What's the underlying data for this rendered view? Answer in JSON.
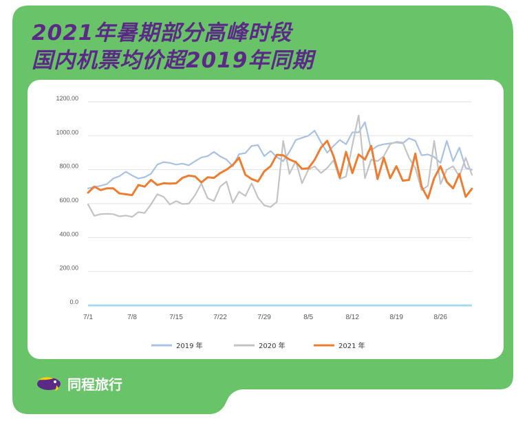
{
  "header": {
    "title_line1": "2021年暑期部分高峰时段",
    "title_line2": "国内机票均价超2019年同期"
  },
  "brand": {
    "name": "同程旅行",
    "logo_icon": "fish-logo-icon"
  },
  "colors": {
    "background_green": "#69c469",
    "title_purple": "#5a2a86",
    "series_2019": "#a9c1e2",
    "series_2020": "#c3c3c3",
    "series_2021": "#ed7d31"
  },
  "chart_data": {
    "type": "line",
    "title": "",
    "xlabel": "",
    "ylabel": "",
    "ylim": [
      0,
      1200
    ],
    "y_ticks": [
      "0.0",
      "200.00",
      "400.00",
      "600.00",
      "800.00",
      "1000.00",
      "1200.00"
    ],
    "x_tick_labels": [
      "7/1",
      "7/8",
      "7/15",
      "7/22",
      "7/29",
      "8/5",
      "8/12",
      "8/19",
      "8/26"
    ],
    "grid": true,
    "legend_position": "bottom",
    "x": [
      "7/1",
      "7/2",
      "7/3",
      "7/4",
      "7/5",
      "7/6",
      "7/7",
      "7/8",
      "7/9",
      "7/10",
      "7/11",
      "7/12",
      "7/13",
      "7/14",
      "7/15",
      "7/16",
      "7/17",
      "7/18",
      "7/19",
      "7/20",
      "7/21",
      "7/22",
      "7/23",
      "7/24",
      "7/25",
      "7/26",
      "7/27",
      "7/28",
      "7/29",
      "7/30",
      "7/31",
      "8/1",
      "8/2",
      "8/3",
      "8/4",
      "8/5",
      "8/6",
      "8/7",
      "8/8",
      "8/9",
      "8/10",
      "8/11",
      "8/12",
      "8/13",
      "8/14",
      "8/15",
      "8/16",
      "8/17",
      "8/18",
      "8/19",
      "8/20",
      "8/21",
      "8/22",
      "8/23",
      "8/24",
      "8/25",
      "8/26",
      "8/27",
      "8/28",
      "8/29",
      "8/30",
      "8/31"
    ],
    "series": [
      {
        "name": "2019 年",
        "color": "#a9c1e2",
        "values": [
          690,
          698,
          705,
          715,
          748,
          762,
          788,
          766,
          748,
          756,
          776,
          830,
          845,
          840,
          830,
          836,
          826,
          850,
          872,
          880,
          905,
          878,
          860,
          820,
          892,
          898,
          940,
          945,
          880,
          910,
          875,
          850,
          905,
          975,
          988,
          1000,
          1030,
          962,
          900,
          940,
          975,
          950,
          1020,
          1020,
          1080,
          915,
          940,
          950,
          955,
          960,
          955,
          985,
          970,
          885,
          890,
          875,
          840,
          970,
          850,
          930,
          810,
          800
        ]
      },
      {
        "name": "2020 年",
        "color": "#c3c3c3",
        "values": [
          595,
          528,
          538,
          540,
          538,
          525,
          530,
          522,
          550,
          545,
          596,
          655,
          640,
          595,
          615,
          598,
          600,
          650,
          718,
          632,
          615,
          700,
          730,
          605,
          670,
          645,
          720,
          635,
          590,
          580,
          610,
          970,
          775,
          850,
          720,
          800,
          820,
          780,
          810,
          855,
          745,
          760,
          945,
          1120,
          750,
          860,
          850,
          880,
          950,
          965,
          960,
          870,
          810,
          680,
          705,
          970,
          715,
          800,
          820,
          760,
          870,
          770
        ]
      },
      {
        "name": "2021 年",
        "color": "#ed7d31",
        "values": [
          665,
          700,
          680,
          690,
          690,
          660,
          655,
          650,
          710,
          700,
          740,
          710,
          720,
          718,
          720,
          752,
          765,
          760,
          725,
          755,
          752,
          780,
          800,
          828,
          870,
          770,
          745,
          730,
          790,
          820,
          888,
          885,
          860,
          845,
          805,
          808,
          858,
          930,
          970,
          880,
          755,
          905,
          780,
          890,
          860,
          940,
          745,
          870,
          750,
          820,
          735,
          740,
          895,
          700,
          630,
          750,
          820,
          728,
          690,
          775,
          640,
          688
        ]
      }
    ]
  }
}
